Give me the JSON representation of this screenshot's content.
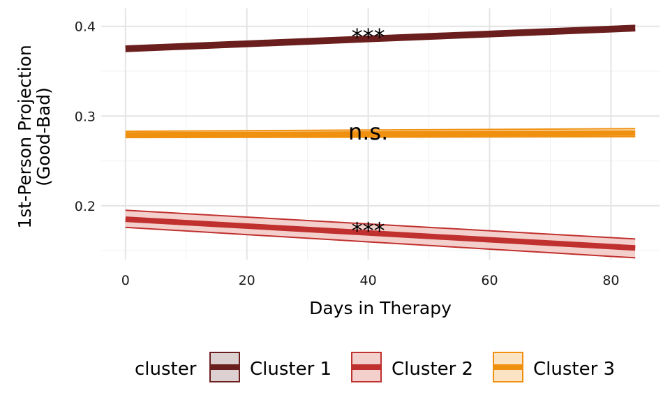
{
  "chart_data": {
    "type": "line",
    "xlabel": "Days in Therapy",
    "ylabel": [
      "1st-Person Projection",
      "(Good-Bad)"
    ],
    "xlim": [
      -4,
      88
    ],
    "ylim": [
      0.14,
      0.42
    ],
    "x_ticks": [
      0,
      20,
      40,
      60,
      80
    ],
    "y_ticks": [
      0.2,
      0.3,
      0.4
    ],
    "x_tick_labels": [
      "0",
      "20",
      "40",
      "60",
      "80"
    ],
    "y_tick_labels": [
      "0.2",
      "0.3",
      "0.4"
    ],
    "grid": true,
    "legend_position": "bottom",
    "legend_title": "cluster",
    "series": [
      {
        "name": "Cluster 1",
        "color": "#6b1e1e",
        "fill": "#dcd0d0",
        "x": [
          0,
          84
        ],
        "y": [
          0.375,
          0.398
        ],
        "ci_low": [
          0.372,
          0.395
        ],
        "ci_high": [
          0.378,
          0.401
        ],
        "annotation": "***"
      },
      {
        "name": "Cluster 2",
        "color": "#c0302e",
        "fill": "#f4d0cc",
        "x": [
          0,
          84
        ],
        "y": [
          0.185,
          0.153
        ],
        "ci_low": [
          0.176,
          0.142
        ],
        "ci_high": [
          0.195,
          0.163
        ],
        "annotation": "***"
      },
      {
        "name": "Cluster 3",
        "color": "#f0900f",
        "fill": "#fbe3c4",
        "x": [
          0,
          84
        ],
        "y": [
          0.279,
          0.281
        ],
        "ci_low": [
          0.276,
          0.277
        ],
        "ci_high": [
          0.283,
          0.286
        ],
        "annotation": "n.s."
      }
    ]
  }
}
